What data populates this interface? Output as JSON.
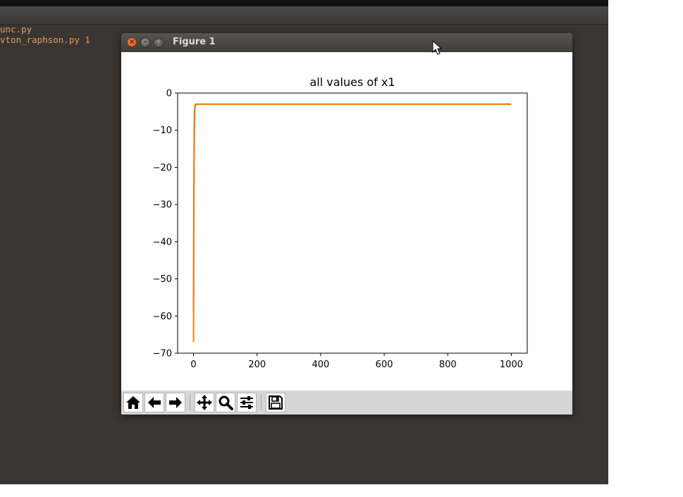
{
  "editor": {
    "files": [
      {
        "name": "unc.py"
      },
      {
        "name": "vton_raphson.py 1"
      }
    ]
  },
  "window": {
    "title": "Figure 1"
  },
  "chart_data": {
    "type": "line",
    "title": "all values of x1",
    "xlabel": "",
    "ylabel": "",
    "xlim": [
      -50,
      1050
    ],
    "ylim": [
      -70,
      0
    ],
    "x_ticks": [
      0,
      200,
      400,
      600,
      800,
      1000
    ],
    "y_ticks": [
      0,
      -10,
      -20,
      -30,
      -40,
      -50,
      -60,
      -70
    ],
    "x_tick_labels": [
      "0",
      "200",
      "400",
      "600",
      "800",
      "1000"
    ],
    "y_tick_labels": [
      "0",
      "−10",
      "−20",
      "−30",
      "−40",
      "−50",
      "−60",
      "−70"
    ],
    "grid": false,
    "series": [
      {
        "color": "#1f77b4",
        "x": [
          0,
          1,
          2,
          3,
          5,
          7,
          10,
          1000
        ],
        "y": [
          -59,
          -30,
          -12,
          -5,
          -3.2,
          -3,
          -3,
          -3
        ]
      },
      {
        "color": "#ff7f0e",
        "x": [
          0,
          1,
          2,
          3,
          4,
          5,
          7,
          10,
          1000
        ],
        "y": [
          -67,
          -40,
          -20,
          -9,
          -5,
          -3.6,
          -3.1,
          -3,
          -3
        ]
      }
    ]
  },
  "toolbar": {
    "buttons": [
      {
        "name": "home-button",
        "icon": "home-icon"
      },
      {
        "name": "back-button",
        "icon": "arrow-left-icon"
      },
      {
        "name": "forward-button",
        "icon": "arrow-right-icon"
      },
      {
        "name": "pan-button",
        "icon": "move-icon"
      },
      {
        "name": "zoom-button",
        "icon": "magnifier-icon"
      },
      {
        "name": "configure-subplots-button",
        "icon": "sliders-icon"
      },
      {
        "name": "save-button",
        "icon": "floppy-disk-icon"
      }
    ]
  }
}
